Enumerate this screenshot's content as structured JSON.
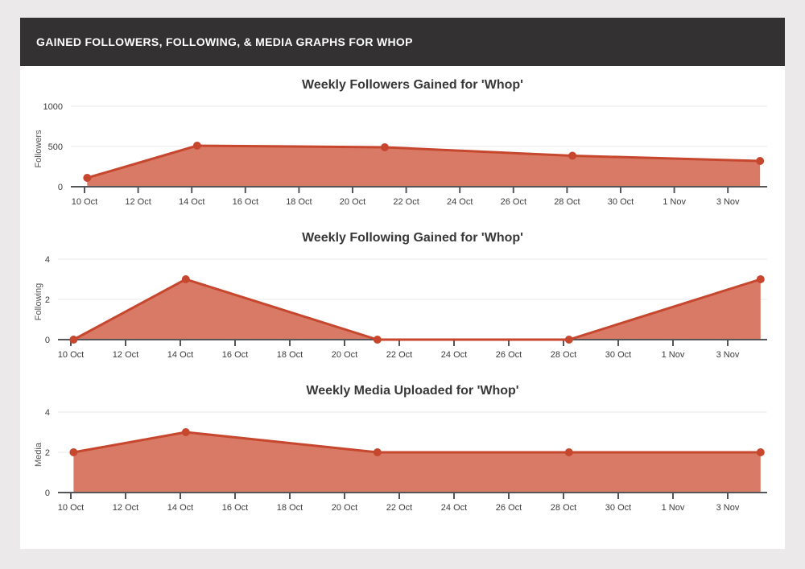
{
  "header": {
    "title": "GAINED FOLLOWERS, FOLLOWING, & MEDIA GRAPHS FOR WHOP"
  },
  "colors": {
    "header_bg": "#333132",
    "accent_line": "#c6472e",
    "accent_fill": "#d87a65",
    "grid": "#e9e9e9",
    "axis": "#55565a",
    "tick_text": "#3c3c3c",
    "axis_title_text": "#555555",
    "title_text": "#383838"
  },
  "x_axis": {
    "tick_labels": [
      "10 Oct",
      "12 Oct",
      "14 Oct",
      "16 Oct",
      "18 Oct",
      "20 Oct",
      "22 Oct",
      "24 Oct",
      "26 Oct",
      "28 Oct",
      "30 Oct",
      "1 Nov",
      "3 Nov"
    ],
    "tick_days": [
      0,
      2,
      4,
      6,
      8,
      10,
      12,
      14,
      16,
      18,
      20,
      22,
      24
    ]
  },
  "chart_data": [
    {
      "type": "area",
      "title": "Weekly Followers Gained for 'Whop'",
      "ylabel": "Followers",
      "y_ticks": [
        0,
        500,
        1000
      ],
      "ylim": [
        0,
        1100
      ],
      "x": [
        "10 Oct",
        "14 Oct",
        "21 Oct",
        "28 Oct",
        "4 Nov"
      ],
      "x_days": [
        0.1,
        4.2,
        11.2,
        18.2,
        25.2
      ],
      "values": [
        110,
        510,
        490,
        385,
        320
      ],
      "grid": "horizontal",
      "legend": "none"
    },
    {
      "type": "area",
      "title": "Weekly Following Gained for 'Whop'",
      "ylabel": "Following",
      "y_ticks": [
        0,
        2,
        4
      ],
      "ylim": [
        0,
        4.4
      ],
      "x": [
        "10 Oct",
        "14 Oct",
        "21 Oct",
        "28 Oct",
        "4 Nov"
      ],
      "x_days": [
        0.1,
        4.2,
        11.2,
        18.2,
        25.2
      ],
      "values": [
        0,
        3,
        0,
        0,
        3
      ],
      "grid": "horizontal",
      "legend": "none"
    },
    {
      "type": "area",
      "title": "Weekly Media Uploaded for 'Whop'",
      "ylabel": "Media",
      "y_ticks": [
        0,
        2,
        4
      ],
      "ylim": [
        0,
        4.4
      ],
      "x": [
        "10 Oct",
        "14 Oct",
        "21 Oct",
        "28 Oct",
        "4 Nov"
      ],
      "x_days": [
        0.1,
        4.2,
        11.2,
        18.2,
        25.2
      ],
      "values": [
        2,
        3,
        2,
        2,
        2
      ],
      "grid": "horizontal",
      "legend": "none"
    }
  ]
}
